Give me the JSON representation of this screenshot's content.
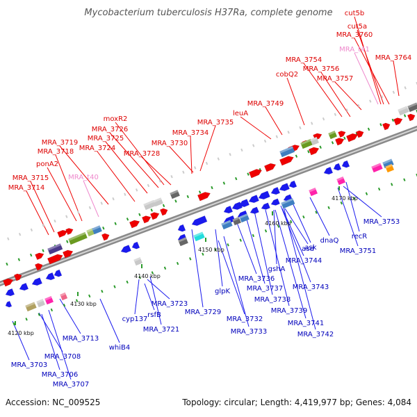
{
  "title": "Mycobacterium tuberculosis H37Ra, complete genome",
  "footer": {
    "accession": "Accession: NC_009525",
    "topology": "Topology: circular; Length: 4,419,977 bp; Genes: 4,084"
  },
  "scale_ticks": [
    "4120 kbp",
    "4130 kbp",
    "4140 kbp",
    "4150 kbp",
    "4160 kbp",
    "4170 kbp"
  ],
  "colors": {
    "forward_gene": "#ee0000",
    "reverse_gene": "#1a1aee",
    "rna_gene": "#ee88cc",
    "backbone": "#8a8a8a"
  },
  "forward_labels": [
    "cut5b",
    "cut5a",
    "MRA_3760",
    "MRA_t41",
    "MRA_3764",
    "MRA_3754",
    "MRA_3756",
    "cobQ2",
    "MRA_3757",
    "MRA_3749",
    "leuA",
    "moxR2",
    "MRA_3726",
    "MRA_3735",
    "MRA_3725",
    "MRA_3734",
    "MRA_3719",
    "MRA_3724",
    "MRA_3718",
    "MRA_3728",
    "MRA_3730",
    "ponA2",
    "MRA_t40",
    "MRA_3715",
    "MRA_3714"
  ],
  "reverse_labels": [
    "MRA_3753",
    "recR",
    "MRA_3751",
    "dnaQ",
    "ask",
    "asd",
    "MRA_3744",
    "gshA",
    "MRA_3743",
    "MRA_3736",
    "MRA_3737",
    "MRA_3738",
    "MRA_3739",
    "MRA_3741",
    "MRA_3742",
    "glpK",
    "MRA_3732",
    "MRA_3733",
    "MRA_3729",
    "MRA_3723",
    "cyp137",
    "rsfB",
    "MRA_3721",
    "whiB4",
    "MRA_3713",
    "MRA_3708",
    "MRA_3703",
    "MRA_3706",
    "MRA_3707"
  ]
}
